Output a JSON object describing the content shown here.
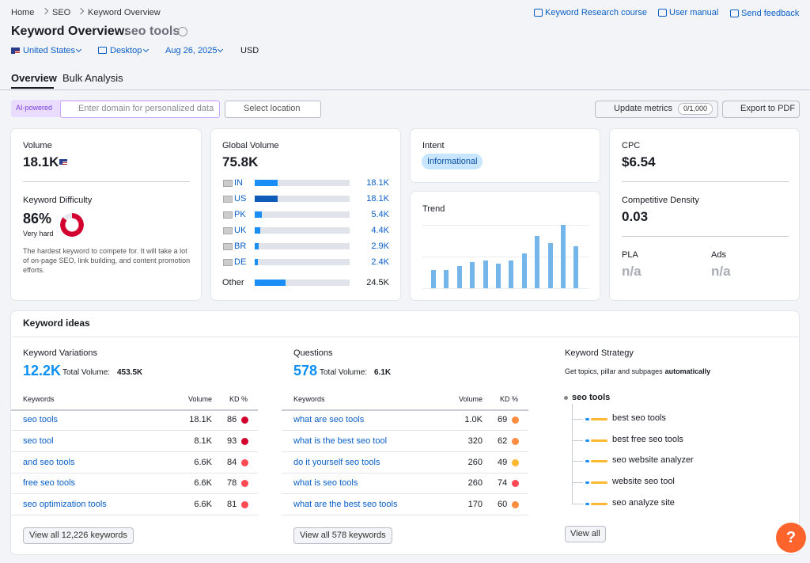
{
  "breadcrumb": [
    "Home",
    "SEO",
    "Keyword Overview"
  ],
  "header_links": [
    "Keyword Research course",
    "User manual",
    "Send feedback"
  ],
  "title": "Keyword Overview:",
  "keyword": "seo tools",
  "filters": [
    "United States",
    "Desktop",
    "Aug 26, 2025"
  ],
  "currency": "USD",
  "tabs": [
    "Overview",
    "Bulk Analysis"
  ],
  "toolbar": {
    "ai_badge": "AI-powered",
    "domain_placeholder": "Enter domain for personalized data",
    "location_placeholder": "Select location",
    "update": "Update metrics",
    "update_count": "0/1,000",
    "export": "Export to PDF"
  },
  "volume": {
    "label": "Volume",
    "value": "18.1K"
  },
  "difficulty": {
    "label": "Keyword Difficulty",
    "value": 86,
    "value_label": "86%",
    "level": "Very hard",
    "color": "#d1002f",
    "description": "The hardest keyword to compete for. It will take a lot of on-page SEO, link building, and content promotion efforts."
  },
  "global_volume": {
    "label": "Global Volume",
    "value": 75800,
    "value_label": "75.8K",
    "countries": [
      {
        "code": "IN",
        "value": 18100,
        "value_label": "18.1K",
        "color": "#1a8ef5"
      },
      {
        "code": "US",
        "value": 18100,
        "value_label": "18.1K",
        "color": "#0f5cb8"
      },
      {
        "code": "PK",
        "value": 5400,
        "value_label": "5.4K",
        "color": "#1a8ef5"
      },
      {
        "code": "UK",
        "value": 4400,
        "value_label": "4.4K",
        "color": "#1a8ef5"
      },
      {
        "code": "BR",
        "value": 2900,
        "value_label": "2.9K",
        "color": "#1a8ef5"
      },
      {
        "code": "DE",
        "value": 2400,
        "value_label": "2.4K",
        "color": "#1a8ef5"
      }
    ],
    "other": {
      "label": "Other",
      "value": 24500,
      "value_label": "24.5K",
      "color": "#1a8ef5"
    }
  },
  "intent": {
    "label": "Intent",
    "value": "Informational"
  },
  "trend": {
    "label": "Trend",
    "values": [
      29,
      29,
      35,
      41,
      44,
      39,
      44,
      55,
      83,
      71,
      100,
      66
    ],
    "ylim": [
      0,
      100
    ],
    "color": "#74b6ea"
  },
  "cpc": {
    "label": "CPC",
    "value": "$6.54"
  },
  "competitive_density": {
    "label": "Competitive Density",
    "value": "0.03"
  },
  "pla": {
    "label": "PLA",
    "value": "n/a"
  },
  "ads": {
    "label": "Ads",
    "value": "n/a"
  },
  "keyword_ideas": {
    "title": "Keyword ideas",
    "variations": {
      "title": "Keyword Variations",
      "count": "12.2K",
      "total_label": "Total Volume:",
      "total": "453.5K",
      "columns": [
        "Keywords",
        "Volume",
        "KD %"
      ],
      "rows": [
        {
          "keyword": "seo tools",
          "volume": "18.1K",
          "kd": "86",
          "color": "#d1002f"
        },
        {
          "keyword": "seo tool",
          "volume": "8.1K",
          "kd": "93",
          "color": "#d1002f"
        },
        {
          "keyword": "and seo tools",
          "volume": "6.6K",
          "kd": "84",
          "color": "#ff4953"
        },
        {
          "keyword": "free seo tools",
          "volume": "6.6K",
          "kd": "78",
          "color": "#ff4953"
        },
        {
          "keyword": "seo optimization tools",
          "volume": "6.6K",
          "kd": "81",
          "color": "#ff4953"
        }
      ],
      "button": "View all 12,226 keywords"
    },
    "questions": {
      "title": "Questions",
      "count": "578",
      "total_label": "Total Volume:",
      "total": "6.1K",
      "columns": [
        "Keywords",
        "Volume",
        "KD %"
      ],
      "rows": [
        {
          "keyword": "what are seo tools",
          "volume": "1.0K",
          "kd": "69",
          "color": "#ff8c43"
        },
        {
          "keyword": "what is the best seo tool",
          "volume": "320",
          "kd": "62",
          "color": "#ff8c43"
        },
        {
          "keyword": "do it yourself seo tools",
          "volume": "260",
          "kd": "49",
          "color": "#ffb930"
        },
        {
          "keyword": "what is seo tools",
          "volume": "260",
          "kd": "74",
          "color": "#ff4953"
        },
        {
          "keyword": "what are the best seo tools",
          "volume": "170",
          "kd": "60",
          "color": "#ff8c43"
        }
      ],
      "button": "View all 578 keywords"
    },
    "strategy": {
      "title": "Keyword Strategy",
      "subtitle": "Get topics, pillar and subpages",
      "subtitle_bold": "automatically",
      "root": "seo tools",
      "items": [
        "best seo tools",
        "best free seo tools",
        "seo website analyzer",
        "website seo tool",
        "seo analyze site"
      ],
      "button": "View all"
    }
  },
  "help": "?"
}
